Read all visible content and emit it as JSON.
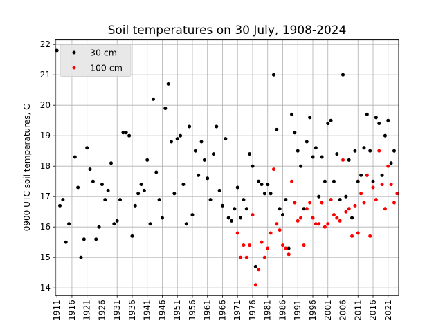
{
  "chart_data": {
    "type": "scatter",
    "title": "Soil temperatures on 30 July, 1908-2024",
    "xlabel": "",
    "ylabel": "0900 UTC soil temperatures, C",
    "xlim": [
      1910.5,
      2024.5
    ],
    "ylim": [
      13.75,
      22.15
    ],
    "xticks": [
      "1911",
      "1916",
      "1921",
      "1926",
      "1931",
      "1936",
      "1941",
      "1946",
      "1951",
      "1956",
      "1961",
      "1966",
      "1971",
      "1976",
      "1981",
      "1986",
      "1991",
      "1996",
      "2001",
      "2006",
      "2011",
      "2016",
      "2021"
    ],
    "yticks": [
      "14",
      "15",
      "16",
      "17",
      "18",
      "19",
      "20",
      "21",
      "22"
    ],
    "grid": true,
    "legend": "upper-left",
    "series": [
      {
        "name": "30 cm",
        "color": "#000000",
        "points": [
          [
            1910,
            16.7
          ],
          [
            1911,
            21.8
          ],
          [
            1912,
            16.7
          ],
          [
            1913,
            16.9
          ],
          [
            1914,
            15.5
          ],
          [
            1915,
            16.1
          ],
          [
            1917,
            18.3
          ],
          [
            1918,
            17.3
          ],
          [
            1919,
            15.0
          ],
          [
            1920,
            15.6
          ],
          [
            1921,
            18.6
          ],
          [
            1922,
            17.9
          ],
          [
            1923,
            17.5
          ],
          [
            1924,
            15.6
          ],
          [
            1925,
            16.0
          ],
          [
            1926,
            17.4
          ],
          [
            1927,
            16.9
          ],
          [
            1928,
            17.2
          ],
          [
            1929,
            18.1
          ],
          [
            1930,
            16.1
          ],
          [
            1931,
            16.2
          ],
          [
            1932,
            16.9
          ],
          [
            1933,
            19.1
          ],
          [
            1934,
            19.1
          ],
          [
            1935,
            19.0
          ],
          [
            1936,
            15.7
          ],
          [
            1937,
            16.7
          ],
          [
            1938,
            17.1
          ],
          [
            1939,
            17.4
          ],
          [
            1940,
            17.2
          ],
          [
            1941,
            18.2
          ],
          [
            1942,
            16.1
          ],
          [
            1943,
            20.2
          ],
          [
            1944,
            17.8
          ],
          [
            1945,
            16.9
          ],
          [
            1946,
            16.3
          ],
          [
            1947,
            19.9
          ],
          [
            1948,
            20.7
          ],
          [
            1949,
            18.8
          ],
          [
            1950,
            17.1
          ],
          [
            1951,
            18.9
          ],
          [
            1952,
            19.0
          ],
          [
            1953,
            17.4
          ],
          [
            1954,
            16.1
          ],
          [
            1955,
            19.3
          ],
          [
            1956,
            16.4
          ],
          [
            1957,
            18.5
          ],
          [
            1958,
            17.7
          ],
          [
            1959,
            18.8
          ],
          [
            1960,
            18.2
          ],
          [
            1961,
            17.6
          ],
          [
            1962,
            16.9
          ],
          [
            1963,
            18.4
          ],
          [
            1964,
            19.3
          ],
          [
            1965,
            17.2
          ],
          [
            1966,
            16.7
          ],
          [
            1967,
            18.9
          ],
          [
            1968,
            16.3
          ],
          [
            1969,
            16.2
          ],
          [
            1970,
            16.6
          ],
          [
            1971,
            17.3
          ],
          [
            1972,
            16.3
          ],
          [
            1973,
            16.9
          ],
          [
            1974,
            16.6
          ],
          [
            1975,
            18.4
          ],
          [
            1976,
            18.0
          ],
          [
            1977,
            14.7
          ],
          [
            1978,
            17.5
          ],
          [
            1979,
            17.4
          ],
          [
            1980,
            17.1
          ],
          [
            1981,
            17.4
          ],
          [
            1982,
            17.1
          ],
          [
            1983,
            21.0
          ],
          [
            1984,
            19.2
          ],
          [
            1985,
            16.6
          ],
          [
            1986,
            16.4
          ],
          [
            1987,
            16.9
          ],
          [
            1988,
            15.3
          ],
          [
            1989,
            19.7
          ],
          [
            1990,
            19.1
          ],
          [
            1991,
            18.5
          ],
          [
            1992,
            18.0
          ],
          [
            1993,
            16.6
          ],
          [
            1994,
            18.8
          ],
          [
            1995,
            19.6
          ],
          [
            1996,
            18.3
          ],
          [
            1997,
            18.6
          ],
          [
            1998,
            17.0
          ],
          [
            1999,
            18.3
          ],
          [
            2000,
            17.5
          ],
          [
            2001,
            19.4
          ],
          [
            2002,
            19.5
          ],
          [
            2003,
            17.5
          ],
          [
            2004,
            18.4
          ],
          [
            2005,
            16.9
          ],
          [
            2006,
            21.0
          ],
          [
            2007,
            17.0
          ],
          [
            2008,
            18.2
          ],
          [
            2009,
            16.3
          ],
          [
            2010,
            18.5
          ],
          [
            2011,
            17.5
          ],
          [
            2012,
            17.7
          ],
          [
            2013,
            18.6
          ],
          [
            2014,
            19.7
          ],
          [
            2015,
            18.5
          ],
          [
            2016,
            17.5
          ],
          [
            2017,
            19.6
          ],
          [
            2018,
            19.4
          ],
          [
            2019,
            17.7
          ],
          [
            2020,
            19.0
          ],
          [
            2021,
            19.5
          ],
          [
            2022,
            18.1
          ],
          [
            2023,
            18.5
          ]
        ]
      },
      {
        "name": "100 cm",
        "color": "#ff0000",
        "points": [
          [
            1971,
            15.8
          ],
          [
            1972,
            15.0
          ],
          [
            1973,
            15.4
          ],
          [
            1974,
            15.0
          ],
          [
            1975,
            15.4
          ],
          [
            1976,
            16.4
          ],
          [
            1977,
            14.1
          ],
          [
            1978,
            14.6
          ],
          [
            1979,
            15.5
          ],
          [
            1980,
            15.0
          ],
          [
            1981,
            15.3
          ],
          [
            1982,
            15.8
          ],
          [
            1983,
            17.9
          ],
          [
            1984,
            16.1
          ],
          [
            1985,
            15.9
          ],
          [
            1986,
            15.4
          ],
          [
            1987,
            15.3
          ],
          [
            1988,
            15.1
          ],
          [
            1989,
            17.5
          ],
          [
            1990,
            16.8
          ],
          [
            1991,
            16.2
          ],
          [
            1992,
            16.3
          ],
          [
            1993,
            15.4
          ],
          [
            1994,
            16.6
          ],
          [
            1995,
            16.8
          ],
          [
            1996,
            16.3
          ],
          [
            1997,
            16.1
          ],
          [
            1998,
            16.1
          ],
          [
            1999,
            16.8
          ],
          [
            2000,
            16.0
          ],
          [
            2001,
            16.1
          ],
          [
            2002,
            16.9
          ],
          [
            2003,
            16.4
          ],
          [
            2004,
            16.3
          ],
          [
            2005,
            16.2
          ],
          [
            2006,
            18.2
          ],
          [
            2007,
            16.5
          ],
          [
            2008,
            16.6
          ],
          [
            2009,
            15.7
          ],
          [
            2010,
            16.7
          ],
          [
            2011,
            15.8
          ],
          [
            2012,
            17.1
          ],
          [
            2013,
            16.8
          ],
          [
            2014,
            17.7
          ],
          [
            2015,
            15.7
          ],
          [
            2016,
            17.3
          ],
          [
            2017,
            16.9
          ],
          [
            2018,
            18.5
          ],
          [
            2019,
            17.4
          ],
          [
            2020,
            16.6
          ],
          [
            2021,
            18.0
          ],
          [
            2022,
            17.4
          ],
          [
            2023,
            16.8
          ],
          [
            2024,
            17.1
          ]
        ]
      }
    ]
  }
}
